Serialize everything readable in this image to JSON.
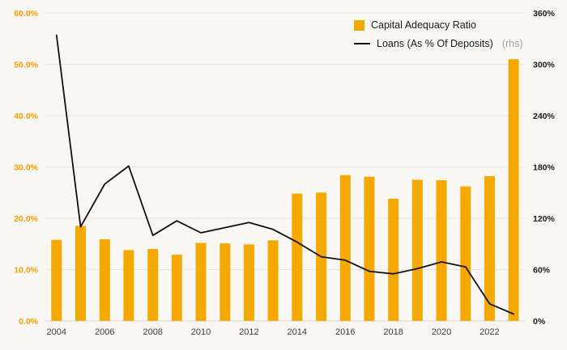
{
  "chart_data": {
    "type": "bar+line combo",
    "categories": [
      2004,
      2005,
      2006,
      2007,
      2008,
      2009,
      2010,
      2011,
      2012,
      2013,
      2014,
      2015,
      2016,
      2017,
      2018,
      2019,
      2020,
      2021,
      2022,
      2023
    ],
    "series": [
      {
        "name": "Capital Adequacy Ratio",
        "type": "bar",
        "axis": "left",
        "color": "#F5A800",
        "values": [
          15.8,
          18.5,
          15.9,
          13.8,
          14.0,
          12.9,
          15.2,
          15.1,
          14.9,
          15.7,
          24.8,
          25.0,
          28.4,
          28.1,
          23.8,
          27.5,
          27.4,
          26.2,
          28.2,
          51.0
        ]
      },
      {
        "name": "Loans (As % Of Deposits)",
        "type": "line",
        "axis": "right",
        "color": "#111111",
        "values": [
          334,
          110,
          160,
          181,
          100,
          117,
          103,
          109,
          115,
          107,
          92,
          75,
          71,
          58,
          55,
          61,
          69,
          63,
          20,
          8
        ]
      }
    ],
    "left_axis": {
      "min": 0,
      "max": 60,
      "tick_values": [
        0,
        10,
        20,
        30,
        40,
        50,
        60
      ],
      "ticks": [
        "0.0%",
        "10.0%",
        "20.0%",
        "30.0%",
        "40.0%",
        "50.0%",
        "60.0%"
      ],
      "color": "#F59C00"
    },
    "right_axis": {
      "min": 0,
      "max": 360,
      "tick_values": [
        0,
        60,
        120,
        180,
        240,
        300,
        360
      ],
      "ticks": [
        "0%",
        "60%",
        "120%",
        "180%",
        "240%",
        "300%",
        "360%"
      ],
      "color": "#1a1a1a"
    },
    "x_ticks": [
      "2004",
      "2006",
      "2008",
      "2010",
      "2012",
      "2014",
      "2016",
      "2018",
      "2020",
      "2022"
    ],
    "legend": [
      {
        "label": "Capital Adequacy Ratio",
        "suffix": ""
      },
      {
        "label": "Loans (As % Of Deposits)",
        "suffix": "(rhs)"
      }
    ],
    "grid": "horizontal only",
    "legend_position": "top-right",
    "background": "#f9f7f3"
  }
}
